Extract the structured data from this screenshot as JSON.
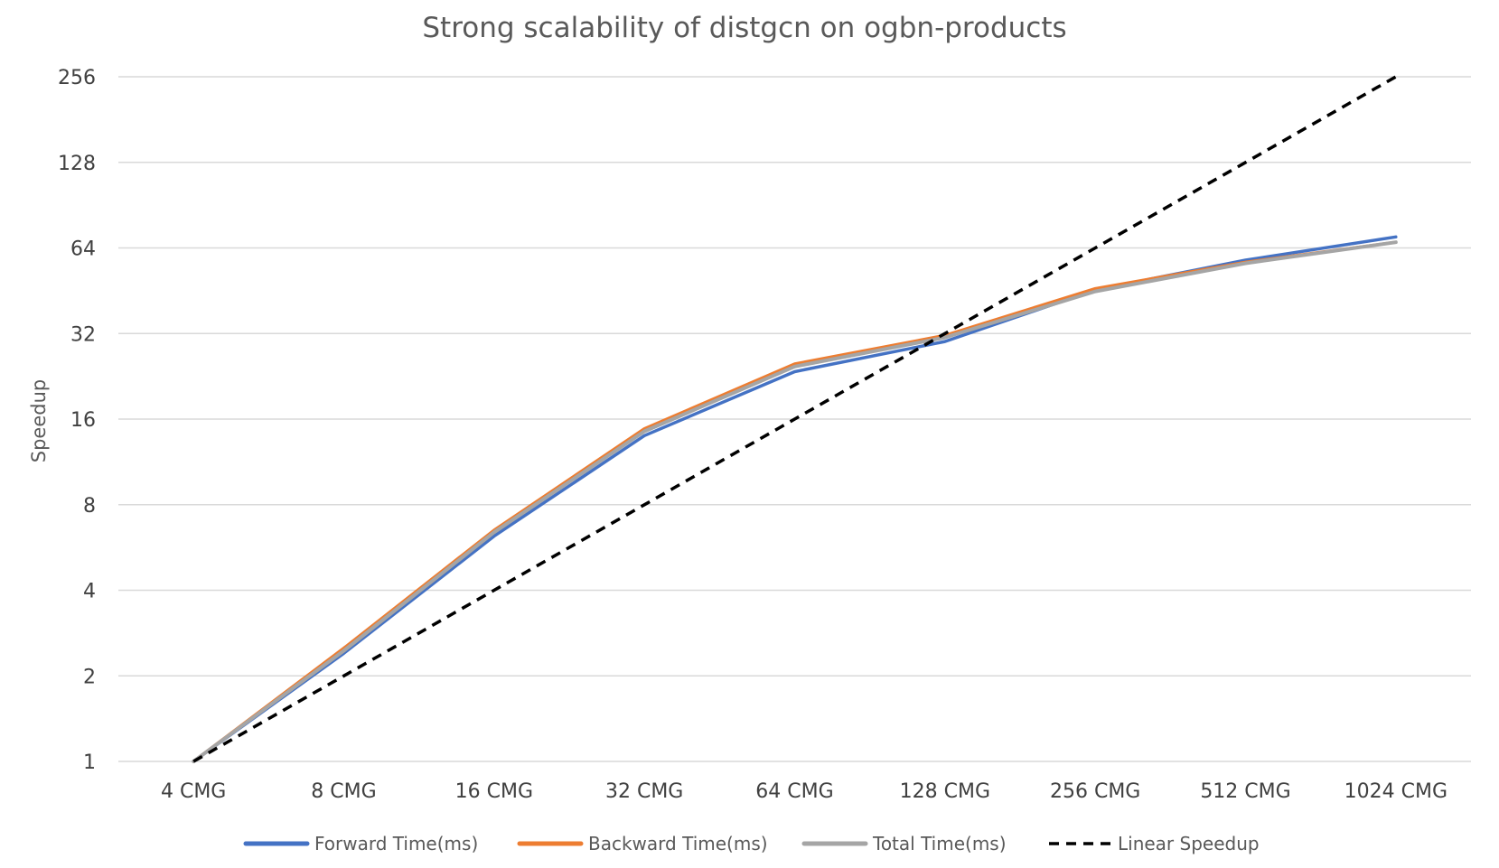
{
  "chart_data": {
    "type": "line",
    "title": "Strong scalability of distgcn on ogbn-products",
    "xlabel": "",
    "ylabel": "Speedup",
    "y_scale": "log2",
    "ylim": [
      1,
      256
    ],
    "y_ticks": [
      "1",
      "2",
      "4",
      "8",
      "16",
      "32",
      "64",
      "128",
      "256"
    ],
    "categories": [
      "4 CMG",
      "8 CMG",
      "16 CMG",
      "32 CMG",
      "64 CMG",
      "128 CMG",
      "256 CMG",
      "512 CMG",
      "1024 CMG"
    ],
    "grid": true,
    "legend_position": "bottom",
    "series": [
      {
        "name": "Forward Time(ms)",
        "color": "#4472C4",
        "dash": "solid",
        "values": [
          1,
          2.4,
          6.2,
          14,
          23.5,
          30,
          45.5,
          58,
          70
        ]
      },
      {
        "name": "Backward Time(ms)",
        "color": "#ED7D31",
        "dash": "solid",
        "values": [
          1,
          2.5,
          6.5,
          14.8,
          25,
          31.5,
          46,
          57,
          67
        ]
      },
      {
        "name": "Total Time(ms)",
        "color": "#A5A5A5",
        "dash": "solid",
        "values": [
          1,
          2.45,
          6.4,
          14.5,
          24.5,
          31,
          45,
          56.5,
          67
        ]
      },
      {
        "name": "Linear Speedup",
        "color": "#000000",
        "dash": "dashed",
        "values": [
          1,
          2,
          4,
          8,
          16,
          32,
          64,
          128,
          256
        ]
      }
    ]
  }
}
